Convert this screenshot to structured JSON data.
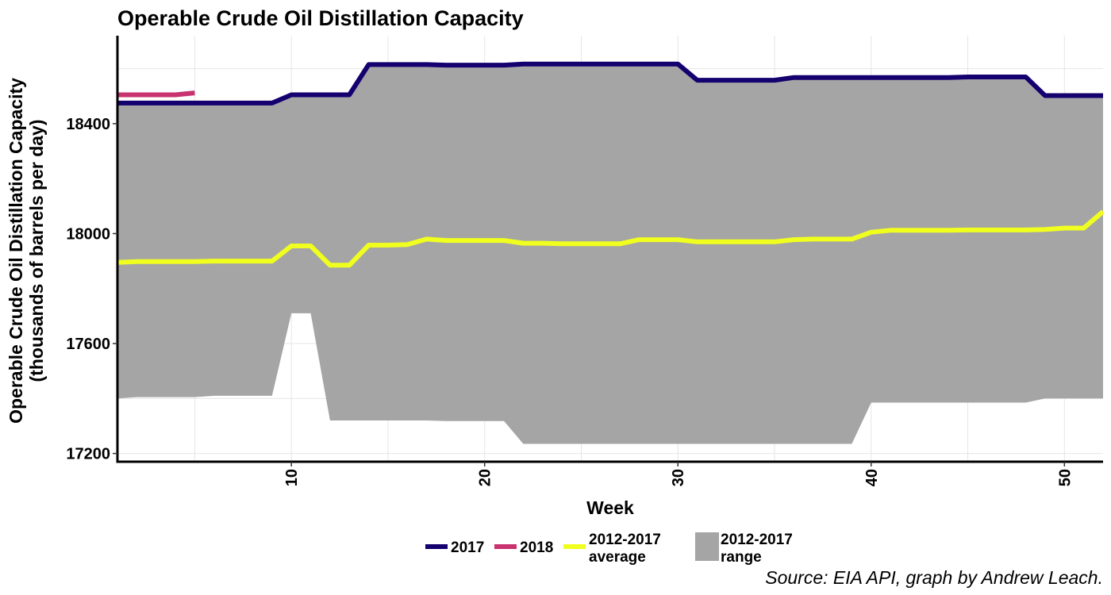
{
  "chart_data": {
    "type": "line",
    "title": "Operable Crude Oil Distillation Capacity",
    "xlabel": "Week",
    "ylabel_line1": "Operable Crude Oil Distillation Capacity",
    "ylabel_line2": "(thousands of barrels per day)",
    "caption": "Source: EIA API, graph by Andrew Leach.",
    "xlim": [
      1,
      52
    ],
    "ylim": [
      17170,
      18720
    ],
    "x_ticks": [
      10,
      20,
      30,
      40,
      50
    ],
    "y_ticks": [
      17200,
      17600,
      18000,
      18400
    ],
    "grid": true,
    "legend_position": "bottom",
    "legend": [
      {
        "key": "s2017",
        "label_lines": [
          "2017"
        ],
        "kind": "line",
        "color": "#14006e"
      },
      {
        "key": "s2018",
        "label_lines": [
          "2018"
        ],
        "kind": "line",
        "color": "#c8326e"
      },
      {
        "key": "avg",
        "label_lines": [
          "2012-2017",
          "average"
        ],
        "kind": "line",
        "color": "#f0ff1e"
      },
      {
        "key": "range",
        "label_lines": [
          "2012-2017",
          "range"
        ],
        "kind": "area",
        "color": "#a5a5a5"
      }
    ],
    "range": {
      "name": "2012-2017 range",
      "color": "#a5a5a5",
      "x": [
        1,
        2,
        3,
        4,
        5,
        6,
        7,
        8,
        9,
        10,
        11,
        12,
        13,
        14,
        15,
        16,
        17,
        18,
        19,
        20,
        21,
        22,
        23,
        24,
        25,
        26,
        27,
        28,
        29,
        30,
        31,
        32,
        33,
        34,
        35,
        36,
        37,
        38,
        39,
        40,
        41,
        42,
        43,
        44,
        45,
        46,
        47,
        48,
        49,
        50,
        51,
        52
      ],
      "low": [
        17400,
        17405,
        17405,
        17405,
        17405,
        17410,
        17410,
        17410,
        17410,
        17710,
        17710,
        17320,
        17320,
        17320,
        17320,
        17320,
        17320,
        17318,
        17318,
        17318,
        17318,
        17235,
        17235,
        17235,
        17235,
        17235,
        17235,
        17235,
        17235,
        17235,
        17235,
        17235,
        17235,
        17235,
        17235,
        17235,
        17235,
        17235,
        17235,
        17385,
        17385,
        17385,
        17385,
        17385,
        17385,
        17385,
        17385,
        17385,
        17400,
        17400,
        17400,
        17400
      ],
      "high": [
        18470,
        18470,
        18470,
        18470,
        18470,
        18470,
        18470,
        18470,
        18470,
        18505,
        18505,
        18505,
        18505,
        18612,
        18612,
        18612,
        18612,
        18610,
        18610,
        18610,
        18610,
        18615,
        18615,
        18615,
        18615,
        18615,
        18615,
        18615,
        18615,
        18615,
        18555,
        18555,
        18555,
        18555,
        18555,
        18565,
        18565,
        18565,
        18565,
        18565,
        18565,
        18565,
        18565,
        18565,
        18568,
        18568,
        18568,
        18568,
        18500,
        18500,
        18500,
        18500
      ]
    },
    "series": [
      {
        "key": "avg",
        "name": "2012-2017 average",
        "color": "#f0ff1e",
        "x": [
          1,
          2,
          3,
          4,
          5,
          6,
          7,
          8,
          9,
          10,
          11,
          12,
          13,
          14,
          15,
          16,
          17,
          18,
          19,
          20,
          21,
          22,
          23,
          24,
          25,
          26,
          27,
          28,
          29,
          30,
          31,
          32,
          33,
          34,
          35,
          36,
          37,
          38,
          39,
          40,
          41,
          42,
          43,
          44,
          45,
          46,
          47,
          48,
          49,
          50,
          51,
          52
        ],
        "values": [
          17895,
          17898,
          17898,
          17898,
          17898,
          17900,
          17900,
          17900,
          17900,
          17955,
          17955,
          17885,
          17885,
          17958,
          17958,
          17960,
          17980,
          17975,
          17975,
          17975,
          17975,
          17965,
          17965,
          17963,
          17963,
          17963,
          17963,
          17978,
          17978,
          17978,
          17970,
          17970,
          17970,
          17970,
          17970,
          17978,
          17980,
          17980,
          17980,
          18005,
          18012,
          18012,
          18012,
          18012,
          18013,
          18013,
          18013,
          18013,
          18015,
          18020,
          18020,
          18080
        ]
      },
      {
        "key": "s2017",
        "name": "2017",
        "color": "#14006e",
        "x": [
          1,
          2,
          3,
          4,
          5,
          6,
          7,
          8,
          9,
          10,
          11,
          12,
          13,
          14,
          15,
          16,
          17,
          18,
          19,
          20,
          21,
          22,
          23,
          24,
          25,
          26,
          27,
          28,
          29,
          30,
          31,
          32,
          33,
          34,
          35,
          36,
          37,
          38,
          39,
          40,
          41,
          42,
          43,
          44,
          45,
          46,
          47,
          48,
          49,
          50,
          51,
          52
        ],
        "values": [
          18475,
          18475,
          18475,
          18475,
          18475,
          18475,
          18475,
          18475,
          18475,
          18505,
          18505,
          18505,
          18505,
          18615,
          18615,
          18615,
          18615,
          18613,
          18613,
          18613,
          18613,
          18617,
          18617,
          18617,
          18617,
          18617,
          18617,
          18617,
          18617,
          18617,
          18558,
          18558,
          18558,
          18558,
          18558,
          18568,
          18568,
          18568,
          18568,
          18568,
          18568,
          18568,
          18568,
          18568,
          18570,
          18570,
          18570,
          18570,
          18502,
          18502,
          18502,
          18502
        ]
      },
      {
        "key": "s2018",
        "name": "2018",
        "color": "#c8326e",
        "x": [
          1,
          2,
          3,
          4,
          5
        ],
        "values": [
          18505,
          18505,
          18505,
          18505,
          18512
        ]
      }
    ]
  }
}
